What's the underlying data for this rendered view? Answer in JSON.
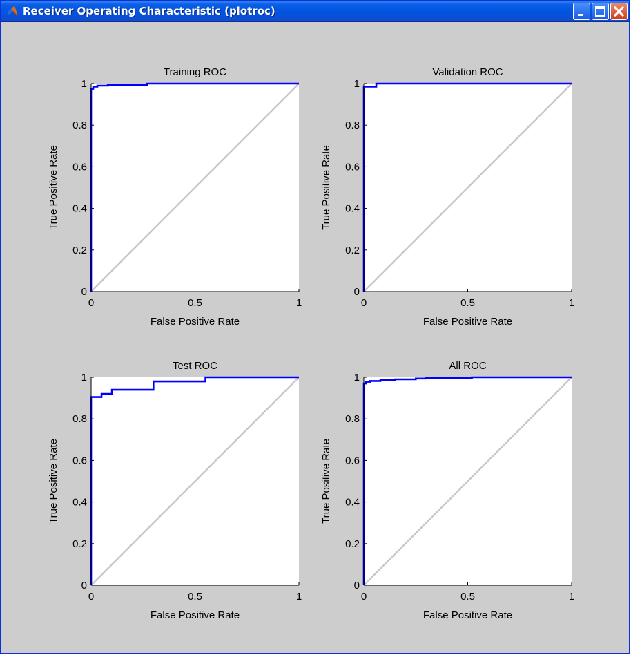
{
  "window": {
    "title": "Receiver Operating Characteristic (plotroc)",
    "icon": "matlab-logo-icon",
    "controls": {
      "minimize": "minimize-icon",
      "maximize": "maximize-icon",
      "close": "close-icon"
    }
  },
  "colors": {
    "roc_line": "#0000ff",
    "diagonal": "#c8c8c8",
    "figure_bg": "#cdcdcd",
    "axes_bg": "#ffffff"
  },
  "chart_data": [
    {
      "type": "line",
      "title": "Training ROC",
      "xlabel": "False Positive Rate",
      "ylabel": "True Positive Rate",
      "xlim": [
        0,
        1
      ],
      "ylim": [
        0,
        1
      ],
      "xticks": [
        "0",
        "0.5",
        "1"
      ],
      "yticks": [
        "0",
        "0.2",
        "0.4",
        "0.6",
        "0.8",
        "1"
      ],
      "grid": false,
      "series": [
        {
          "x": [
            0,
            0,
            0.01,
            0.01,
            0.03,
            0.03,
            0.08,
            0.08,
            0.27,
            0.27,
            1
          ],
          "y": [
            0,
            0.975,
            0.975,
            0.985,
            0.985,
            0.99,
            0.99,
            0.993,
            0.993,
            1,
            1
          ]
        }
      ],
      "diagonal": true
    },
    {
      "type": "line",
      "title": "Validation ROC",
      "xlabel": "False Positive Rate",
      "ylabel": "True Positive Rate",
      "xlim": [
        0,
        1
      ],
      "ylim": [
        0,
        1
      ],
      "xticks": [
        "0",
        "0.5",
        "1"
      ],
      "yticks": [
        "0",
        "0.2",
        "0.4",
        "0.6",
        "0.8",
        "1"
      ],
      "grid": false,
      "series": [
        {
          "x": [
            0,
            0,
            0.06,
            0.06,
            1
          ],
          "y": [
            0,
            0.985,
            0.985,
            1,
            1
          ]
        }
      ],
      "diagonal": true
    },
    {
      "type": "line",
      "title": "Test ROC",
      "xlabel": "False Positive Rate",
      "ylabel": "True Positive Rate",
      "xlim": [
        0,
        1
      ],
      "ylim": [
        0,
        1
      ],
      "xticks": [
        "0",
        "0.5",
        "1"
      ],
      "yticks": [
        "0",
        "0.2",
        "0.4",
        "0.6",
        "0.8",
        "1"
      ],
      "grid": false,
      "series": [
        {
          "x": [
            0,
            0,
            0.05,
            0.05,
            0.1,
            0.1,
            0.3,
            0.3,
            0.55,
            0.55,
            1
          ],
          "y": [
            0,
            0.905,
            0.905,
            0.92,
            0.92,
            0.94,
            0.94,
            0.98,
            0.98,
            1,
            1
          ]
        }
      ],
      "diagonal": true
    },
    {
      "type": "line",
      "title": "All ROC",
      "xlabel": "False Positive Rate",
      "ylabel": "True Positive Rate",
      "xlim": [
        0,
        1
      ],
      "ylim": [
        0,
        1
      ],
      "xticks": [
        "0",
        "0.5",
        "1"
      ],
      "yticks": [
        "0",
        "0.2",
        "0.4",
        "0.6",
        "0.8",
        "1"
      ],
      "grid": false,
      "series": [
        {
          "x": [
            0,
            0,
            0.01,
            0.01,
            0.03,
            0.03,
            0.08,
            0.08,
            0.15,
            0.15,
            0.25,
            0.25,
            0.3,
            0.3,
            0.52,
            0.52,
            1
          ],
          "y": [
            0,
            0.97,
            0.97,
            0.978,
            0.978,
            0.982,
            0.982,
            0.986,
            0.986,
            0.99,
            0.99,
            0.994,
            0.994,
            0.997,
            0.997,
            1,
            1
          ]
        }
      ],
      "diagonal": true
    }
  ]
}
